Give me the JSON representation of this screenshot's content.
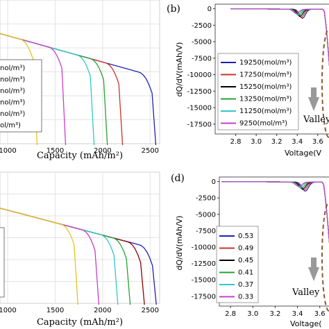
{
  "chart_data": [
    {
      "type": "line",
      "panel": "a",
      "xlabel": "Capacity (mAh/m²)",
      "ylabel": "",
      "xlim": [
        700,
        2600
      ],
      "ticks_x": [
        "1000",
        "1500",
        "2000",
        "2500"
      ],
      "legend_labels": [
        "nol/m³)",
        "nol/m³)",
        "nol/m³)",
        "nol/m³)",
        "nol/m³)",
        "ol/m³)"
      ],
      "series": [
        {
          "color": "#1f1fb5",
          "end": 2560
        },
        {
          "color": "#c8332a",
          "end": 2210
        },
        {
          "color": "#27a032",
          "end": 2050
        },
        {
          "color": "#2ec8c8",
          "end": 1910
        },
        {
          "color": "#c93cc9",
          "end": 1610
        },
        {
          "color": "#e8c21a",
          "end": 1310
        }
      ]
    },
    {
      "type": "line",
      "panel": "b",
      "tag": "(b)",
      "xlabel": "Voltage(V",
      "ylabel": "dQ/dV(mAh/V)",
      "xlim": [
        2.6,
        3.75
      ],
      "ylim": [
        -19000,
        700
      ],
      "ticks_x": [
        "2.8",
        "3.0",
        "3.2",
        "3.4",
        "3.6"
      ],
      "ticks_y": [
        "0",
        "-2500",
        "-5000",
        "-7500",
        "-10000",
        "-12500",
        "-15000",
        "-17500"
      ],
      "legend": [
        "19250(mol/m³)",
        "17250(mol/m³)",
        "15250(mol/m³)",
        "13250(mol/m³)",
        "11250(mol/m³)",
        "9250(mol/m³)"
      ],
      "annotation": "Valley",
      "series_colors": [
        "#1f1fb5",
        "#c8332a",
        "#000000",
        "#27a032",
        "#2ec8c8",
        "#c93cc9"
      ]
    },
    {
      "type": "line",
      "panel": "c",
      "xlabel": "Capacity (mAh/m²)",
      "ylabel": "",
      "xlim": [
        700,
        2600
      ],
      "ticks_x": [
        "1000",
        "1500",
        "2000",
        "2500"
      ],
      "series": [
        {
          "color": "#1f1fb5",
          "end": 2565
        },
        {
          "color": "#8b0000",
          "end": 2440
        },
        {
          "color": "#27a032",
          "end": 2290
        },
        {
          "color": "#2ec8c8",
          "end": 2160
        },
        {
          "color": "#c93cc9",
          "end": 1960
        },
        {
          "color": "#e8c21a",
          "end": 1740
        }
      ]
    },
    {
      "type": "line",
      "panel": "d",
      "tag": "(d)",
      "xlabel": "Voltage(",
      "ylabel": "dQ/dV(mAh/V)",
      "xlim": [
        2.7,
        3.72
      ],
      "ylim": [
        -19000,
        700
      ],
      "ticks_x": [
        "2.8",
        "3.0",
        "3.2",
        "3.4",
        "3.6"
      ],
      "ticks_y": [
        "0",
        "-2500",
        "-5000",
        "-7500",
        "-10000",
        "-12500",
        "-15000",
        "-17500"
      ],
      "legend": [
        "0.53",
        "0.49",
        "0.45",
        "0.41",
        "0.37",
        "0.33"
      ],
      "annotation": "Valley",
      "series_colors": [
        "#1f1fb5",
        "#c8332a",
        "#000000",
        "#27a032",
        "#2ec8c8",
        "#c93cc9"
      ]
    }
  ]
}
